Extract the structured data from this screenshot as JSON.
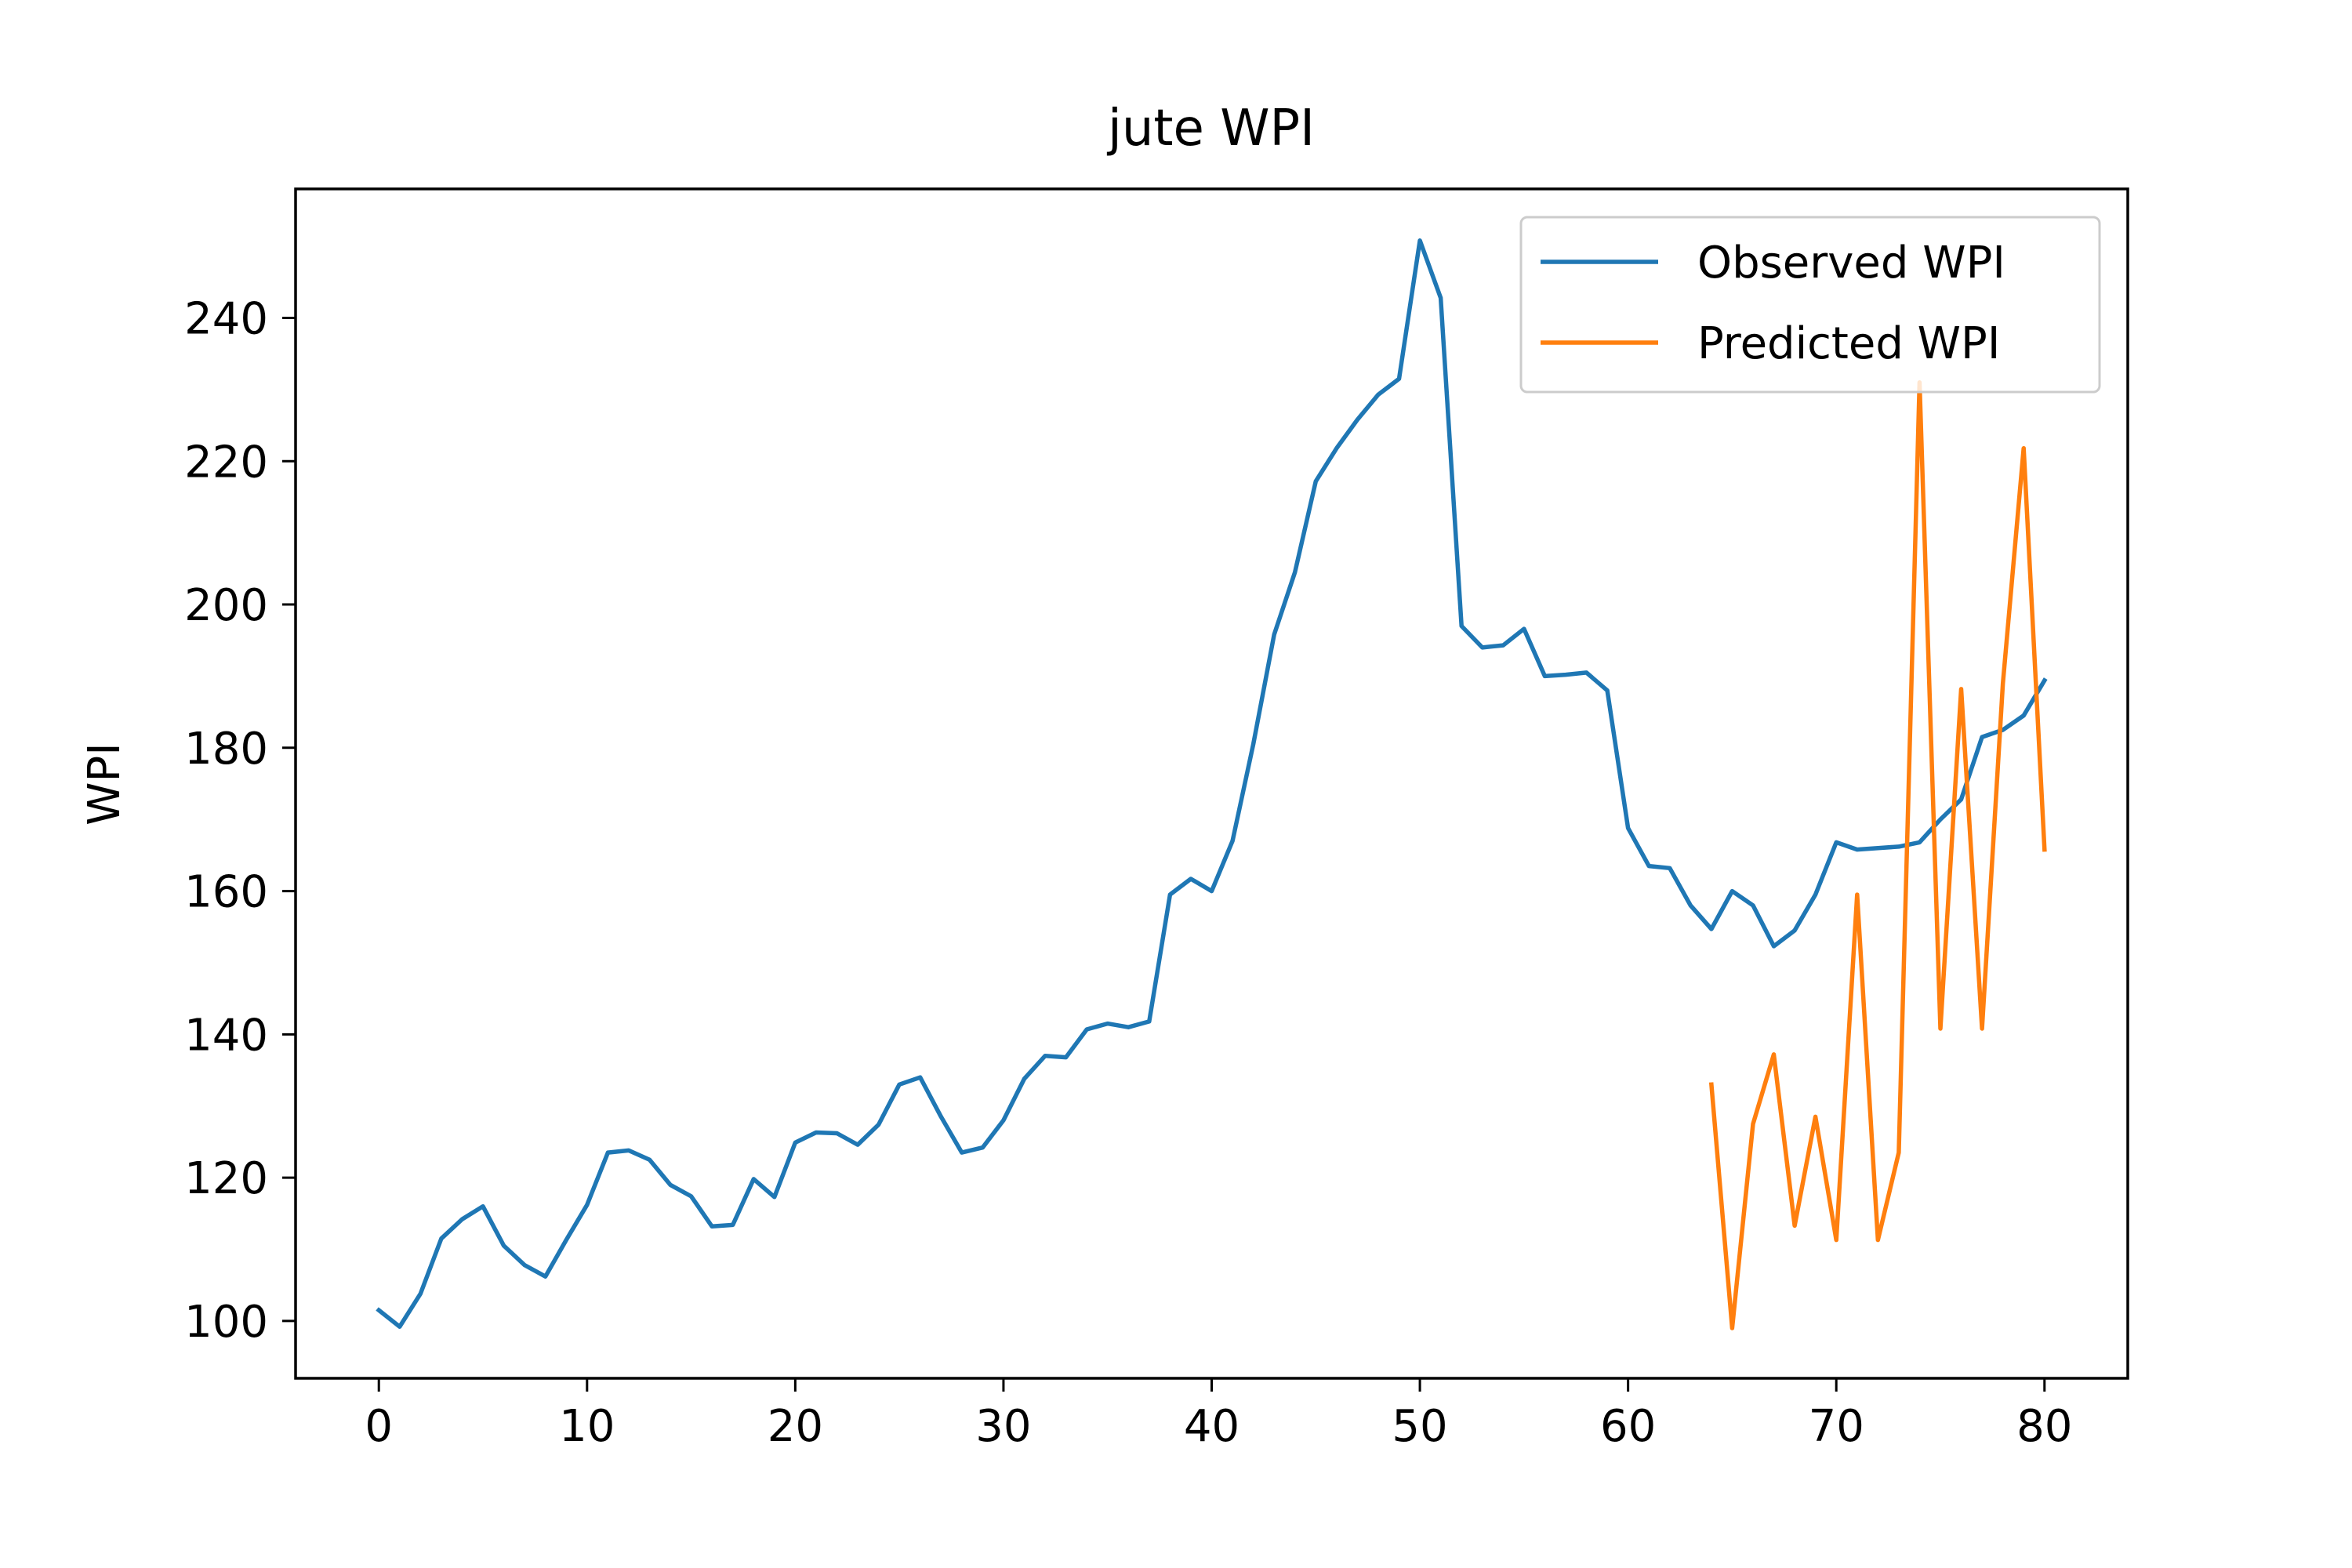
{
  "chart_data": {
    "type": "line",
    "title": "jute WPI",
    "xlabel": "",
    "ylabel": "WPI",
    "xlim": [
      -4,
      84
    ],
    "ylim": [
      92,
      258
    ],
    "xticks": [
      0,
      10,
      20,
      30,
      40,
      50,
      60,
      70,
      80
    ],
    "yticks": [
      100,
      120,
      140,
      160,
      180,
      200,
      220,
      240
    ],
    "grid": false,
    "legend_position": "top-right",
    "series": [
      {
        "name": "Observed WPI",
        "color": "#1f77b4",
        "x": [
          0,
          1,
          2,
          3,
          4,
          5,
          6,
          7,
          8,
          9,
          10,
          11,
          12,
          13,
          14,
          15,
          16,
          17,
          18,
          19,
          20,
          21,
          22,
          23,
          24,
          25,
          26,
          27,
          28,
          29,
          30,
          31,
          32,
          33,
          34,
          35,
          36,
          37,
          38,
          39,
          40,
          41,
          42,
          43,
          44,
          45,
          46,
          47,
          48,
          49,
          50,
          51,
          52,
          53,
          54,
          55,
          56,
          57,
          58,
          59,
          60,
          61,
          62,
          63,
          64,
          65,
          66,
          67,
          68,
          69,
          70,
          71,
          72,
          73,
          74,
          75,
          76,
          77,
          78,
          79,
          80
        ],
        "values": [
          101.5,
          99.2,
          103.8,
          111.5,
          114.2,
          116.0,
          110.5,
          107.8,
          106.2,
          111.3,
          116.2,
          123.5,
          123.8,
          122.5,
          119.0,
          117.4,
          113.2,
          113.4,
          119.8,
          117.3,
          124.9,
          126.3,
          126.2,
          124.6,
          127.4,
          133.0,
          134.0,
          128.5,
          123.5,
          124.2,
          128.0,
          133.8,
          137.0,
          136.8,
          140.7,
          141.5,
          141.0,
          141.8,
          159.5,
          161.7,
          160.0,
          167.0,
          180.5,
          195.8,
          204.5,
          217.2,
          221.8,
          225.8,
          229.3,
          231.5,
          250.8,
          242.8,
          197.0,
          194.0,
          194.3,
          196.6,
          190.0,
          190.2,
          190.5,
          188.0,
          168.8,
          163.5,
          163.2,
          158.0,
          154.7,
          160.0,
          158.0,
          152.3,
          154.5,
          159.5,
          166.8,
          165.8,
          166.0,
          166.2,
          166.8,
          170.0,
          172.8,
          181.5,
          182.5,
          184.5,
          189.4
        ]
      },
      {
        "name": "Predicted WPI",
        "color": "#ff7f0e",
        "x": [
          64,
          65,
          66,
          67,
          68,
          69,
          70,
          71,
          72,
          73,
          74,
          75,
          76,
          77,
          78,
          79,
          80
        ],
        "values": [
          133.0,
          99.0,
          127.5,
          137.2,
          113.3,
          128.5,
          111.3,
          159.5,
          111.3,
          123.5,
          231.0,
          140.8,
          188.2,
          140.8,
          189.0,
          221.8,
          165.8
        ]
      }
    ]
  }
}
